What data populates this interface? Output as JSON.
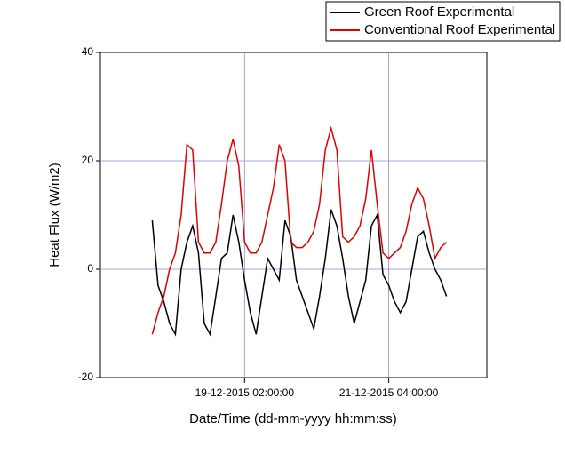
{
  "chart_data": {
    "type": "line",
    "ylabel": "Heat Flux (W/m2)",
    "xlabel": "Date/Time (dd-mm-yyyy hh:mm:ss)",
    "xlim": [
      "17-12-2015 00:00:00",
      "22-12-2015 14:00:00"
    ],
    "xticks": [
      "19-12-2015 02:00:00",
      "21-12-2015 04:00:00"
    ],
    "ylim": [
      -20,
      40
    ],
    "yticks": [
      -20,
      0,
      20,
      40
    ],
    "grid": true,
    "legend": "top-right",
    "x": [
      "17-12-2015 18:00:00",
      "17-12-2015 20:00:00",
      "17-12-2015 22:00:00",
      "18-12-2015 00:00:00",
      "18-12-2015 02:00:00",
      "18-12-2015 04:00:00",
      "18-12-2015 06:00:00",
      "18-12-2015 08:00:00",
      "18-12-2015 10:00:00",
      "18-12-2015 12:00:00",
      "18-12-2015 14:00:00",
      "18-12-2015 16:00:00",
      "18-12-2015 18:00:00",
      "18-12-2015 20:00:00",
      "18-12-2015 22:00:00",
      "19-12-2015 00:00:00",
      "19-12-2015 02:00:00",
      "19-12-2015 04:00:00",
      "19-12-2015 06:00:00",
      "19-12-2015 08:00:00",
      "19-12-2015 10:00:00",
      "19-12-2015 12:00:00",
      "19-12-2015 14:00:00",
      "19-12-2015 16:00:00",
      "19-12-2015 18:00:00",
      "19-12-2015 20:00:00",
      "19-12-2015 22:00:00",
      "20-12-2015 00:00:00",
      "20-12-2015 02:00:00",
      "20-12-2015 04:00:00",
      "20-12-2015 06:00:00",
      "20-12-2015 08:00:00",
      "20-12-2015 10:00:00",
      "20-12-2015 12:00:00",
      "20-12-2015 14:00:00",
      "20-12-2015 16:00:00",
      "20-12-2015 18:00:00",
      "20-12-2015 20:00:00",
      "20-12-2015 22:00:00",
      "21-12-2015 00:00:00",
      "21-12-2015 02:00:00",
      "21-12-2015 04:00:00",
      "21-12-2015 06:00:00",
      "21-12-2015 08:00:00",
      "21-12-2015 10:00:00",
      "21-12-2015 12:00:00",
      "21-12-2015 14:00:00",
      "21-12-2015 16:00:00",
      "21-12-2015 18:00:00",
      "21-12-2015 20:00:00",
      "21-12-2015 22:00:00",
      "22-12-2015 00:00:00"
    ],
    "series": [
      {
        "name": "Green Roof Experimental",
        "color": "#000000",
        "values": [
          9,
          -3,
          -6,
          -10,
          -12,
          0,
          5,
          8,
          3,
          -10,
          -12,
          -5,
          2,
          3,
          10,
          5,
          -2,
          -8,
          -12,
          -5,
          2,
          0,
          -2,
          9,
          6,
          -2,
          -5,
          -8,
          -11,
          -5,
          2,
          11,
          8,
          2,
          -5,
          -10,
          -6,
          -2,
          8,
          10,
          -1,
          -3,
          -6,
          -8,
          -6,
          0,
          6,
          7,
          3,
          0,
          -2,
          -5
        ]
      },
      {
        "name": "Conventional Roof Experimental",
        "color": "#e00000",
        "values": [
          -12,
          -8,
          -5,
          0,
          3,
          10,
          23,
          22,
          5,
          3,
          3,
          5,
          12,
          20,
          24,
          19,
          5,
          3,
          3,
          5,
          10,
          15,
          23,
          20,
          5,
          4,
          4,
          5,
          7,
          12,
          22,
          26,
          22,
          6,
          5,
          6,
          8,
          13,
          22,
          12,
          3,
          2,
          3,
          4,
          7,
          12,
          15,
          13,
          8,
          2,
          4,
          5
        ]
      }
    ]
  }
}
